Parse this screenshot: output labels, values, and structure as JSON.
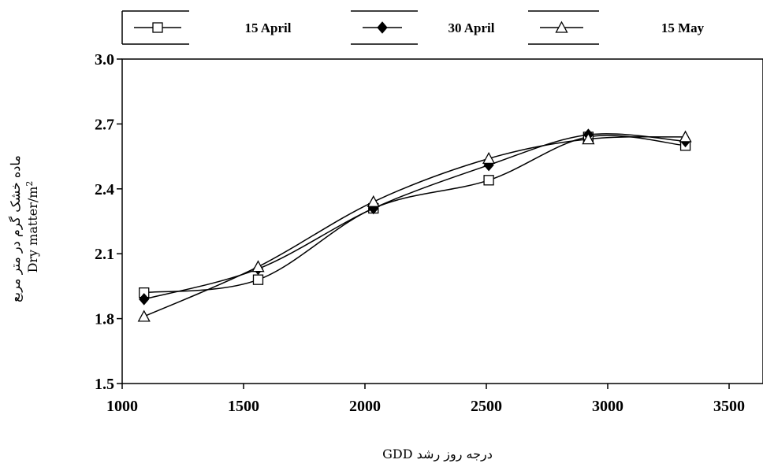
{
  "chart_data": {
    "type": "line",
    "xlabel": "درجه روز رشد GDD",
    "ylabel_fa": "ماده خشک گرم در متر مربع",
    "ylabel": "Dry matter/m",
    "ylabel_sup": "2",
    "xlim": [
      1000,
      3500
    ],
    "ylim": [
      1.5,
      3.0
    ],
    "xticks": [
      "1000",
      "1500",
      "2000",
      "2500",
      "3000",
      "3500"
    ],
    "yticks": [
      "1.5",
      "1.8",
      "2.1",
      "2.4",
      "2.7",
      "3.0"
    ],
    "grid": false,
    "legend_position": "top",
    "series": [
      {
        "name": "15 April",
        "marker": "square-open",
        "x": [
          1090,
          1560,
          2035,
          2510,
          2920,
          3320
        ],
        "y": [
          1.92,
          1.98,
          2.31,
          2.44,
          2.64,
          2.6
        ]
      },
      {
        "name": "30 April",
        "marker": "diamond-filled",
        "x": [
          1090,
          1560,
          2035,
          2510,
          2920,
          3320
        ],
        "y": [
          1.89,
          2.03,
          2.31,
          2.51,
          2.65,
          2.62
        ]
      },
      {
        "name": "15 May",
        "marker": "triangle-open",
        "x": [
          1090,
          1560,
          2035,
          2510,
          2920,
          3320
        ],
        "y": [
          1.81,
          2.04,
          2.34,
          2.54,
          2.63,
          2.64
        ]
      }
    ]
  }
}
